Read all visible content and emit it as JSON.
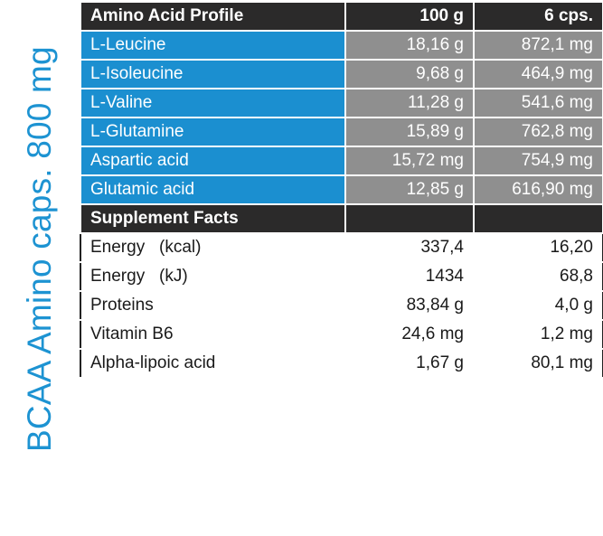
{
  "side_title": "BCAA Amino caps. 800 mg",
  "amino_header": {
    "label": "Amino Acid Profile",
    "col1": "100 g",
    "col2": "6 cps."
  },
  "amino_rows": [
    {
      "name": "L-Leucine",
      "v100": "18,16 g",
      "vcps": "872,1 mg"
    },
    {
      "name": "L-Isoleucine",
      "v100": "9,68 g",
      "vcps": "464,9 mg"
    },
    {
      "name": "L-Valine",
      "v100": "11,28 g",
      "vcps": "541,6 mg"
    },
    {
      "name": "L-Glutamine",
      "v100": "15,89 g",
      "vcps": "762,8 mg"
    },
    {
      "name": "Aspartic acid",
      "v100": "15,72 mg",
      "vcps": "754,9 mg"
    },
    {
      "name": "Glutamic acid",
      "v100": "12,85 g",
      "vcps": "616,90 mg"
    }
  ],
  "supplement_header": {
    "label": "Supplement Facts"
  },
  "supplement_rows": [
    {
      "name": "Energy   (kcal)",
      "v100": "337,4",
      "vcps": "16,20"
    },
    {
      "name": "Energy   (kJ)",
      "v100": "1434",
      "vcps": "68,8"
    },
    {
      "name": "Proteins",
      "v100": "83,84 g",
      "vcps": "4,0 g"
    },
    {
      "name": "Vitamin B6",
      "v100": "24,6 mg",
      "vcps": "1,2 mg"
    },
    {
      "name": "Alpha-lipoic acid",
      "v100": "1,67 g",
      "vcps": "80,1 mg"
    }
  ],
  "colors": {
    "brand_blue": "#1b8fd0",
    "header_dark": "#2b2a2a",
    "value_grey": "#8f8f8f"
  }
}
